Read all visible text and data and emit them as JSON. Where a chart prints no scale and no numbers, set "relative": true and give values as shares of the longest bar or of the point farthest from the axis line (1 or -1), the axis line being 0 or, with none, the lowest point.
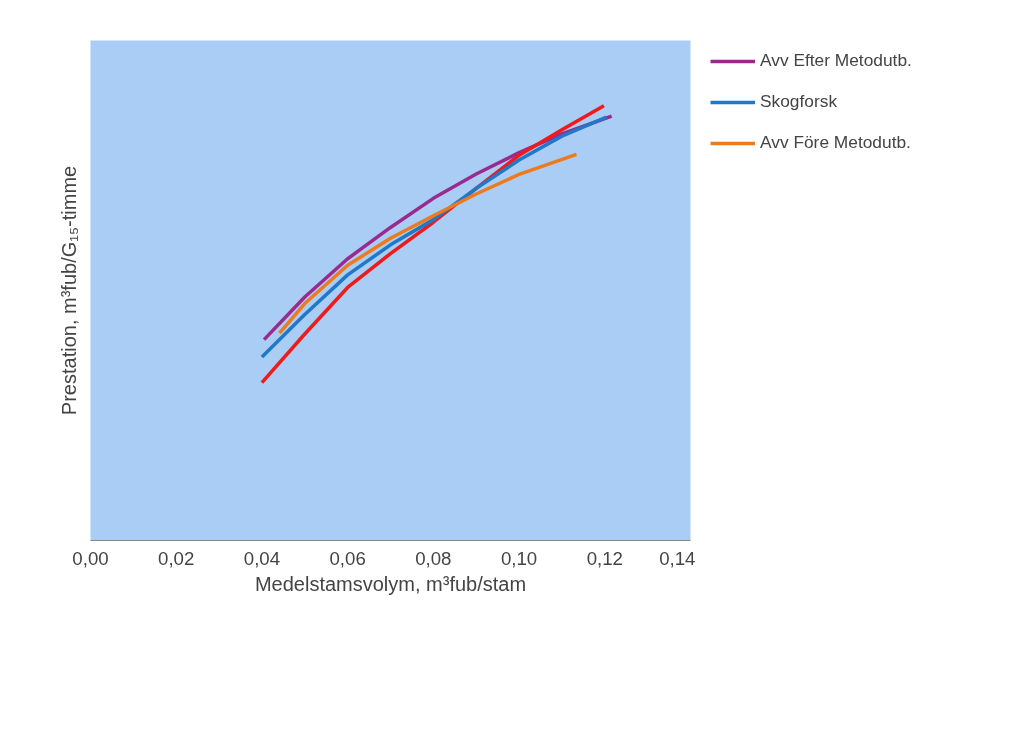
{
  "chart_data": {
    "type": "line",
    "relative": true,
    "xlabel": "Medelstamsvolym, m³fub/stam",
    "ylabel": "Prestation, m³fub/G₁₅-timme",
    "xlim": [
      0,
      0.14
    ],
    "xticks": [
      {
        "value": 0,
        "label": "0,00"
      },
      {
        "value": 0.02,
        "label": "0,02"
      },
      {
        "value": 0.04,
        "label": "0,04"
      },
      {
        "value": 0.06,
        "label": "0,06"
      },
      {
        "value": 0.08,
        "label": "0,08"
      },
      {
        "value": 0.1,
        "label": "0,10"
      },
      {
        "value": 0.12,
        "label": "0,12"
      },
      {
        "value": 0.14,
        "label": "0,14"
      }
    ],
    "legend": "right",
    "line_style": "solid",
    "marker": "none",
    "series": [
      {
        "name": "Avv Efter Metodutb.",
        "color": "#9b2a8f",
        "x": [
          0.0405,
          0.05,
          0.06,
          0.07,
          0.08,
          0.09,
          0.1,
          0.11,
          0.1216
        ],
        "values": [
          0.462,
          0.56,
          0.648,
          0.72,
          0.787,
          0.843,
          0.892,
          0.935,
          0.976
        ]
      },
      {
        "color": "#f01a1a",
        "x": [
          0.04,
          0.05,
          0.06,
          0.07,
          0.08,
          0.09,
          0.1,
          0.11,
          0.1198
        ],
        "values": [
          0.363,
          0.475,
          0.582,
          0.66,
          0.732,
          0.81,
          0.886,
          0.945,
          1.0
        ]
      },
      {
        "name": "Skogforsk",
        "color": "#1f78c8",
        "x": [
          0.04,
          0.05,
          0.06,
          0.07,
          0.08,
          0.09,
          0.1,
          0.11,
          0.1204
        ],
        "values": [
          0.422,
          0.52,
          0.611,
          0.68,
          0.738,
          0.81,
          0.875,
          0.93,
          0.974
        ]
      },
      {
        "name": "Avv Före Metodutb.",
        "color": "#ee7a1e",
        "x": [
          0.0441,
          0.05,
          0.06,
          0.07,
          0.08,
          0.09,
          0.1,
          0.1134
        ],
        "values": [
          0.477,
          0.545,
          0.633,
          0.695,
          0.747,
          0.797,
          0.842,
          0.888
        ]
      }
    ]
  }
}
